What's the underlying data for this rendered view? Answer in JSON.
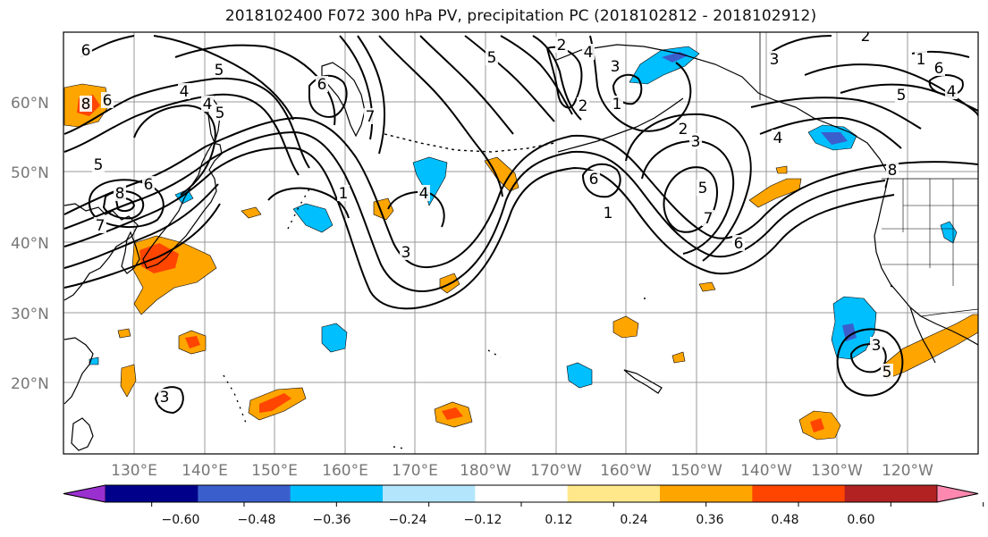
{
  "title": "2018102400 F072 300 hPa PV, precipitation PC (2018102812 - 2018102912)",
  "map": {
    "lat_labels": [
      "60°N",
      "50°N",
      "40°N",
      "30°N",
      "20°N"
    ],
    "lon_labels": [
      "130°E",
      "140°E",
      "150°E",
      "160°E",
      "170°E",
      "180°W",
      "170°W",
      "160°W",
      "150°W",
      "140°W",
      "130°W",
      "120°W"
    ],
    "pv_contour_labels": [
      "6",
      "5",
      "4",
      "5",
      "8",
      "7",
      "6",
      "8",
      "6",
      "7",
      "1",
      "3",
      "4",
      "5",
      "2",
      "4",
      "3",
      "2",
      "1",
      "2",
      "3",
      "6",
      "5",
      "7",
      "6",
      "1",
      "3",
      "2",
      "1",
      "5",
      "8",
      "6",
      "4",
      "3",
      "5",
      "4",
      "3",
      "5",
      "4",
      "6"
    ],
    "colors": {
      "grid": "#9a9a9a",
      "contour": "#000000",
      "coast": "#000000"
    }
  },
  "colorbar": {
    "tick_labels": [
      "−0.60",
      "−0.48",
      "−0.36",
      "−0.24",
      "−0.12",
      "0.12",
      "0.24",
      "0.36",
      "0.48",
      "0.60"
    ],
    "colors": [
      "#9b30d0",
      "#00008b",
      "#3a5fcd",
      "#00bfff",
      "#b3e5fc",
      "#ffffff",
      "#ffe88a",
      "#ffa500",
      "#ff4500",
      "#b22222",
      "#ff88b0"
    ]
  }
}
